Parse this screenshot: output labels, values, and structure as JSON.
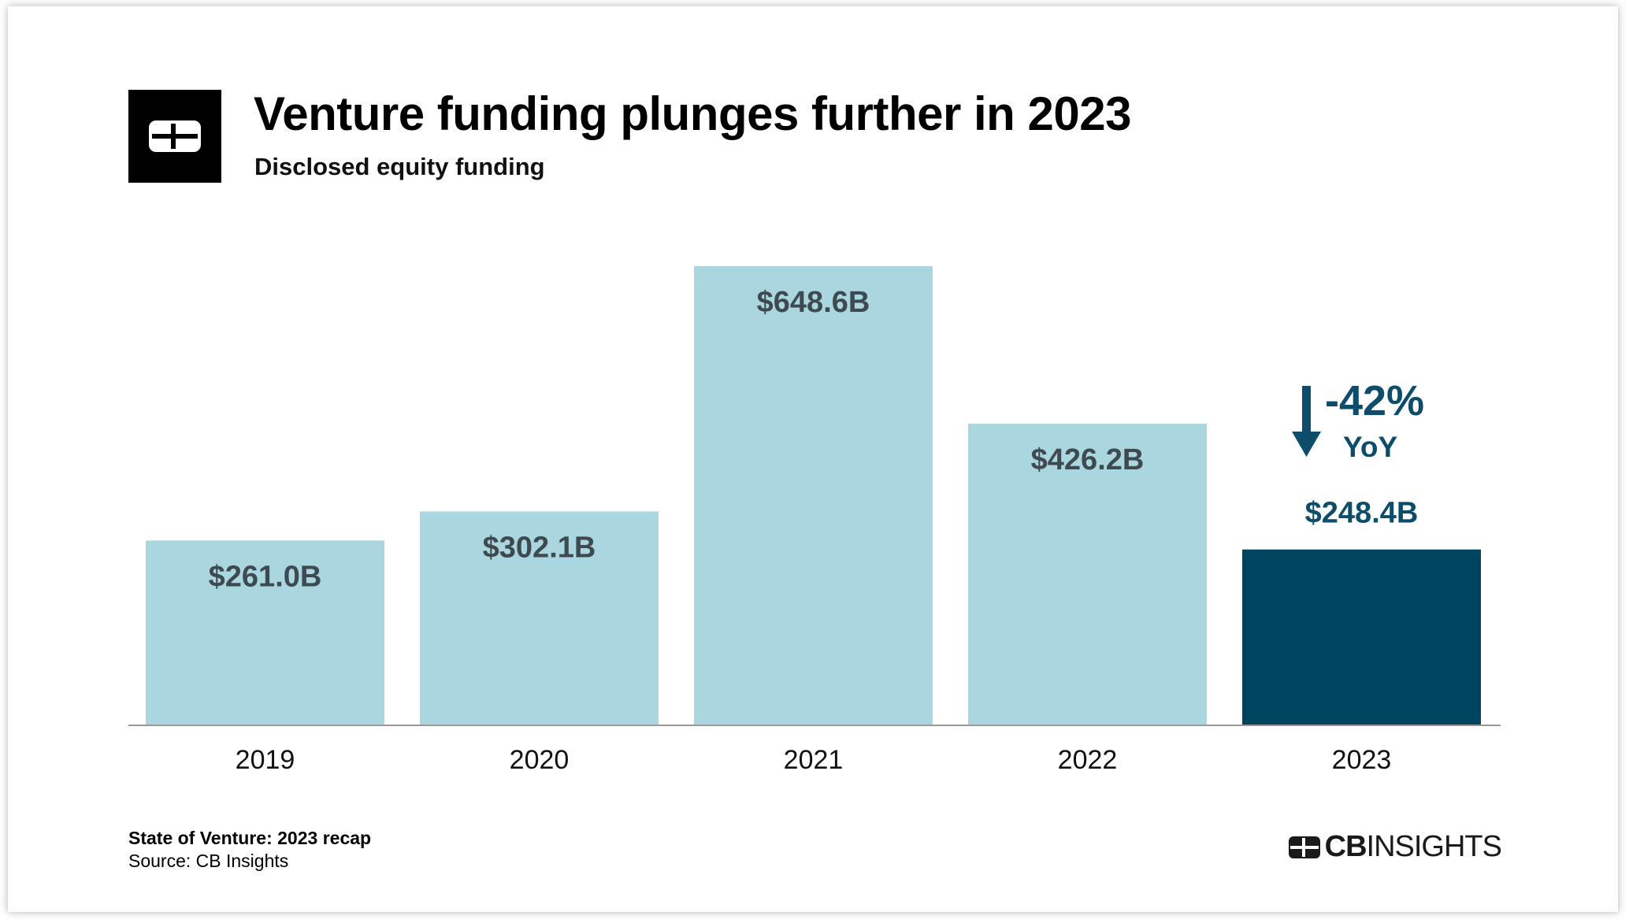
{
  "header": {
    "title": "Venture funding plunges further in 2023",
    "subtitle": "Disclosed equity funding",
    "logo_icon": "cb-insights-logo-icon"
  },
  "chart_data": {
    "type": "bar",
    "title": "Venture funding plunges further in 2023",
    "subtitle": "Disclosed equity funding",
    "categories": [
      "2019",
      "2020",
      "2021",
      "2022",
      "2023"
    ],
    "values": [
      261.0,
      302.1,
      648.6,
      426.2,
      248.4
    ],
    "labels": [
      "$261.0B",
      "$302.1B",
      "$648.6B",
      "$426.2B",
      "$248.4B"
    ],
    "unit": "$B",
    "xlabel": "",
    "ylabel": "",
    "ylim": [
      0,
      648.6
    ],
    "grid": false,
    "highlight_index": 4,
    "colors": {
      "default": "#a9d6df",
      "highlight": "#004560",
      "label_default": "#3f4a50",
      "label_highlight": "#0d4d6b",
      "axis": "#999999"
    },
    "annotation": {
      "text": "-42%",
      "subtext": "YoY",
      "icon": "down-arrow-icon",
      "target": "2023"
    }
  },
  "footer": {
    "report": "State of Venture: 2023 recap",
    "source": "Source: CB Insights",
    "brand_bold": "CB",
    "brand_light": "INSIGHTS"
  }
}
